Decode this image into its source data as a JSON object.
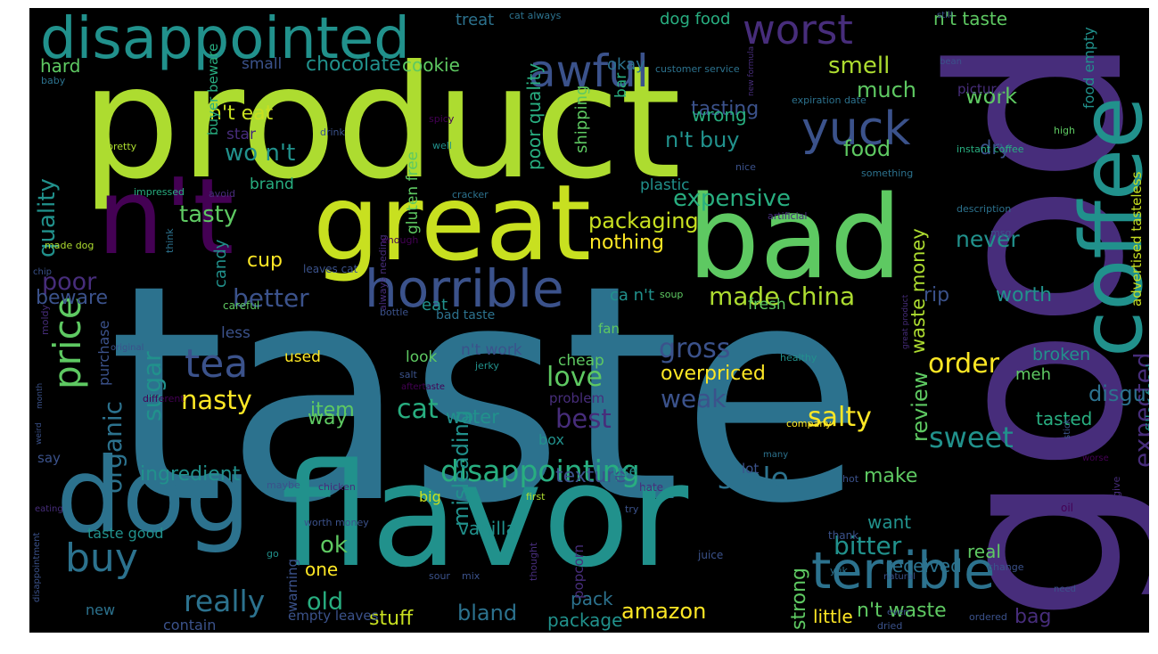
{
  "palette": {
    "background": "#000000",
    "purple_dark": "#440154",
    "purple": "#472d7b",
    "indigo": "#3b528b",
    "blue": "#2c728e",
    "teal": "#21918c",
    "green_teal": "#28ae80",
    "green": "#5ec962",
    "lime": "#addc30",
    "yellow": "#fde725"
  },
  "words": [
    {
      "text": "taste",
      "color": "#2c728e"
    },
    {
      "text": "good",
      "color": "#472d7b"
    },
    {
      "text": "product",
      "color": "#addc30"
    },
    {
      "text": "flavor",
      "color": "#21918c"
    },
    {
      "text": "great",
      "color": "#c8e020"
    },
    {
      "text": "n't",
      "color": "#440154"
    },
    {
      "text": "bad",
      "color": "#5ec962"
    },
    {
      "text": "coffee",
      "color": "#21918c"
    },
    {
      "text": "dog",
      "color": "#2c728e"
    },
    {
      "text": "disappointed",
      "color": "#21918c"
    },
    {
      "text": "horrible",
      "color": "#3b528b"
    },
    {
      "text": "terrible",
      "color": "#2c728e"
    },
    {
      "text": "awful",
      "color": "#3b528b"
    },
    {
      "text": "worst",
      "color": "#472d7b"
    },
    {
      "text": "yuck",
      "color": "#3b528b"
    },
    {
      "text": "buy",
      "color": "#2c728e"
    },
    {
      "text": "price",
      "color": "#5ec962"
    },
    {
      "text": "tea",
      "color": "#3b528b"
    },
    {
      "text": "disappointing",
      "color": "#28ae80"
    },
    {
      "text": "made china",
      "color": "#addc30"
    },
    {
      "text": "sweet",
      "color": "#21918c"
    },
    {
      "text": "really",
      "color": "#2c728e"
    },
    {
      "text": "stale",
      "color": "#2c728e"
    },
    {
      "text": "love",
      "color": "#5ec962"
    },
    {
      "text": "order",
      "color": "#fde725"
    },
    {
      "text": "nasty",
      "color": "#fde725"
    },
    {
      "text": "amazon",
      "color": "#fde725"
    },
    {
      "text": "expensive",
      "color": "#28ae80"
    },
    {
      "text": "bitter",
      "color": "#21918c"
    },
    {
      "text": "bland",
      "color": "#2c728e"
    },
    {
      "text": "cat",
      "color": "#28ae80"
    },
    {
      "text": "best",
      "color": "#472d7b"
    },
    {
      "text": "gross",
      "color": "#3b528b"
    },
    {
      "text": "weak",
      "color": "#3b528b"
    },
    {
      "text": "salty",
      "color": "#fde725"
    },
    {
      "text": "tasting",
      "color": "#3b528b"
    },
    {
      "text": "smell",
      "color": "#addc30"
    },
    {
      "text": "much",
      "color": "#5ec962"
    },
    {
      "text": "food",
      "color": "#5ec962"
    },
    {
      "text": "n't buy",
      "color": "#21918c"
    },
    {
      "text": "wo n't",
      "color": "#21918c"
    },
    {
      "text": "poor",
      "color": "#472d7b"
    },
    {
      "text": "better",
      "color": "#3b528b"
    },
    {
      "text": "beware",
      "color": "#3b528b"
    },
    {
      "text": "packaging",
      "color": "#c8e020"
    },
    {
      "text": "nothing",
      "color": "#fde725"
    },
    {
      "text": "tasty",
      "color": "#5ec962"
    },
    {
      "text": "cup",
      "color": "#fde725"
    },
    {
      "text": "ok",
      "color": "#5ec962"
    },
    {
      "text": "old",
      "color": "#28ae80"
    },
    {
      "text": "one",
      "color": "#fde725"
    },
    {
      "text": "stuff",
      "color": "#c8e020"
    },
    {
      "text": "organic",
      "color": "#2c728e"
    },
    {
      "text": "sugar",
      "color": "#21918c"
    },
    {
      "text": "quality",
      "color": "#21918c"
    },
    {
      "text": "chocolate",
      "color": "#21918c"
    },
    {
      "text": "cookie",
      "color": "#5ec962"
    },
    {
      "text": "hard",
      "color": "#5ec962"
    },
    {
      "text": "n't eat",
      "color": "#c8e020"
    },
    {
      "text": "wrong",
      "color": "#28ae80"
    },
    {
      "text": "work",
      "color": "#5ec962"
    },
    {
      "text": "dry",
      "color": "#3b528b"
    },
    {
      "text": "never",
      "color": "#21918c"
    },
    {
      "text": "rip",
      "color": "#3b528b"
    },
    {
      "text": "worth",
      "color": "#21918c"
    },
    {
      "text": "review",
      "color": "#5ec962"
    },
    {
      "text": "waste money",
      "color": "#addc30"
    },
    {
      "text": "expected",
      "color": "#472d7b"
    },
    {
      "text": "disgusting",
      "color": "#2c728e"
    },
    {
      "text": "bag",
      "color": "#472d7b"
    },
    {
      "text": "strong",
      "color": "#5ec962"
    },
    {
      "text": "misleading",
      "color": "#21918c"
    },
    {
      "text": "ingredient",
      "color": "#21918c"
    },
    {
      "text": "overpriced",
      "color": "#fde725"
    },
    {
      "text": "texture",
      "color": "#3b528b"
    },
    {
      "text": "item",
      "color": "#5ec962"
    },
    {
      "text": "water",
      "color": "#21918c"
    },
    {
      "text": "way",
      "color": "#5ec962"
    },
    {
      "text": "make",
      "color": "#5ec962"
    },
    {
      "text": "vanilla",
      "color": "#21918c"
    },
    {
      "text": "pack",
      "color": "#2c728e"
    },
    {
      "text": "package",
      "color": "#21918c"
    },
    {
      "text": "little",
      "color": "#fde725"
    },
    {
      "text": "n't waste",
      "color": "#5ec962"
    },
    {
      "text": "real",
      "color": "#5ec962"
    },
    {
      "text": "want",
      "color": "#21918c"
    },
    {
      "text": "received",
      "color": "#2c728e"
    },
    {
      "text": "tasted",
      "color": "#28ae80"
    },
    {
      "text": "broken",
      "color": "#21918c"
    },
    {
      "text": "meh",
      "color": "#5ec962"
    },
    {
      "text": "n't taste",
      "color": "#5ec962"
    },
    {
      "text": "dog food",
      "color": "#28ae80"
    },
    {
      "text": "treat",
      "color": "#2c728e"
    },
    {
      "text": "okay",
      "color": "#2c728e"
    },
    {
      "text": "small",
      "color": "#3b528b"
    },
    {
      "text": "bar",
      "color": "#28ae80"
    },
    {
      "text": "shipping",
      "color": "#5ec962"
    },
    {
      "text": "poor quality",
      "color": "#28ae80"
    },
    {
      "text": "gluten free",
      "color": "#5ec962"
    },
    {
      "text": "buyer beware",
      "color": "#28ae80"
    },
    {
      "text": "star",
      "color": "#472d7b"
    },
    {
      "text": "brand",
      "color": "#28ae80"
    },
    {
      "text": "plastic",
      "color": "#21918c"
    },
    {
      "text": "candy",
      "color": "#21918c"
    },
    {
      "text": "ca n't",
      "color": "#21918c"
    },
    {
      "text": "fresh",
      "color": "#5ec962"
    },
    {
      "text": "eat",
      "color": "#21918c"
    },
    {
      "text": "fan",
      "color": "#5ec962"
    },
    {
      "text": "n't work",
      "color": "#3b528b"
    },
    {
      "text": "cheap",
      "color": "#5ec962"
    },
    {
      "text": "look",
      "color": "#5ec962"
    },
    {
      "text": "used",
      "color": "#fde725"
    },
    {
      "text": "less",
      "color": "#3b528b"
    },
    {
      "text": "purchase",
      "color": "#3b528b"
    },
    {
      "text": "say",
      "color": "#3b528b"
    },
    {
      "text": "box",
      "color": "#21918c"
    },
    {
      "text": "problem",
      "color": "#472d7b"
    },
    {
      "text": "taste good",
      "color": "#21918c"
    },
    {
      "text": "new",
      "color": "#2c728e"
    },
    {
      "text": "contain",
      "color": "#3b528b"
    },
    {
      "text": "big",
      "color": "#c8e020"
    },
    {
      "text": "use",
      "color": "#21918c"
    },
    {
      "text": "lot",
      "color": "#3b528b"
    },
    {
      "text": "popcorn",
      "color": "#472d7b"
    },
    {
      "text": "warning",
      "color": "#3b528b"
    },
    {
      "text": "empty leaves",
      "color": "#3b528b"
    },
    {
      "text": "cat always",
      "color": "#2c728e"
    },
    {
      "text": "customer service",
      "color": "#2c728e"
    },
    {
      "text": "expiration date",
      "color": "#2c728e"
    },
    {
      "text": "bean",
      "color": "#3b528b"
    },
    {
      "text": "still",
      "color": "#3b528b"
    },
    {
      "text": "food empty",
      "color": "#21918c"
    },
    {
      "text": "picture",
      "color": "#472d7b"
    },
    {
      "text": "advertised tasteless",
      "color": "#c8e020"
    },
    {
      "text": "filler food",
      "color": "#21918c"
    },
    {
      "text": "high",
      "color": "#5ec962"
    },
    {
      "text": "instant coffee",
      "color": "#28ae80"
    },
    {
      "text": "something",
      "color": "#2c728e"
    },
    {
      "text": "nice",
      "color": "#3b528b"
    },
    {
      "text": "description",
      "color": "#2c728e"
    },
    {
      "text": "msg",
      "color": "#3b528b"
    },
    {
      "text": "artificial",
      "color": "#472d7b"
    },
    {
      "text": "new formula",
      "color": "#472d7b"
    },
    {
      "text": "well",
      "color": "#21918c"
    },
    {
      "text": "spicy",
      "color": "#440154"
    },
    {
      "text": "drink",
      "color": "#3b528b"
    },
    {
      "text": "pretty",
      "color": "#addc30"
    },
    {
      "text": "baby",
      "color": "#2c728e"
    },
    {
      "text": "impressed",
      "color": "#28ae80"
    },
    {
      "text": "avoid",
      "color": "#472d7b"
    },
    {
      "text": "cracker",
      "color": "#2c728e"
    },
    {
      "text": "made dog",
      "color": "#addc30"
    },
    {
      "text": "enough",
      "color": "#440154"
    },
    {
      "text": "think",
      "color": "#2c728e"
    },
    {
      "text": "always needing",
      "color": "#472d7b"
    },
    {
      "text": "leaves cat",
      "color": "#3b528b"
    },
    {
      "text": "chip",
      "color": "#3b528b"
    },
    {
      "text": "careful",
      "color": "#5ec962"
    },
    {
      "text": "bottle",
      "color": "#3b528b"
    },
    {
      "text": "bad taste",
      "color": "#2c728e"
    },
    {
      "text": "soup",
      "color": "#5ec962"
    },
    {
      "text": "moldy",
      "color": "#472d7b"
    },
    {
      "text": "original",
      "color": "#3b528b"
    },
    {
      "text": "healthy",
      "color": "#21918c"
    },
    {
      "text": "great product",
      "color": "#472d7b"
    },
    {
      "text": "jerky",
      "color": "#21918c"
    },
    {
      "text": "salt",
      "color": "#3b528b"
    },
    {
      "text": "aftertaste",
      "color": "#440154"
    },
    {
      "text": "different",
      "color": "#440154"
    },
    {
      "text": "month",
      "color": "#3b528b"
    },
    {
      "text": "weird",
      "color": "#3b528b"
    },
    {
      "text": "company",
      "color": "#fde725"
    },
    {
      "text": "many",
      "color": "#2c728e"
    },
    {
      "text": "worse",
      "color": "#440154"
    },
    {
      "text": "stick",
      "color": "#3b528b"
    },
    {
      "text": "eating",
      "color": "#472d7b"
    },
    {
      "text": "maybe",
      "color": "#3b528b"
    },
    {
      "text": "chicken",
      "color": "#472d7b"
    },
    {
      "text": "hot",
      "color": "#3b528b"
    },
    {
      "text": "hate",
      "color": "#472d7b"
    },
    {
      "text": "first",
      "color": "#addc30"
    },
    {
      "text": "try",
      "color": "#3b528b"
    },
    {
      "text": "give",
      "color": "#472d7b"
    },
    {
      "text": "oil",
      "color": "#440154"
    },
    {
      "text": "disappointment",
      "color": "#3b528b"
    },
    {
      "text": "worth money",
      "color": "#3b528b"
    },
    {
      "text": "go",
      "color": "#21918c"
    },
    {
      "text": "sour",
      "color": "#3b528b"
    },
    {
      "text": "mix",
      "color": "#3b528b"
    },
    {
      "text": "thought",
      "color": "#472d7b"
    },
    {
      "text": "juice",
      "color": "#3b528b"
    },
    {
      "text": "thank",
      "color": "#3b528b"
    },
    {
      "text": "yuk",
      "color": "#2c728e"
    },
    {
      "text": "natural",
      "color": "#3b528b"
    },
    {
      "text": "change",
      "color": "#3b528b"
    },
    {
      "text": "need",
      "color": "#3b528b"
    },
    {
      "text": "even",
      "color": "#3b528b"
    },
    {
      "text": "dried",
      "color": "#3b528b"
    },
    {
      "text": "ordered",
      "color": "#3b528b"
    }
  ]
}
